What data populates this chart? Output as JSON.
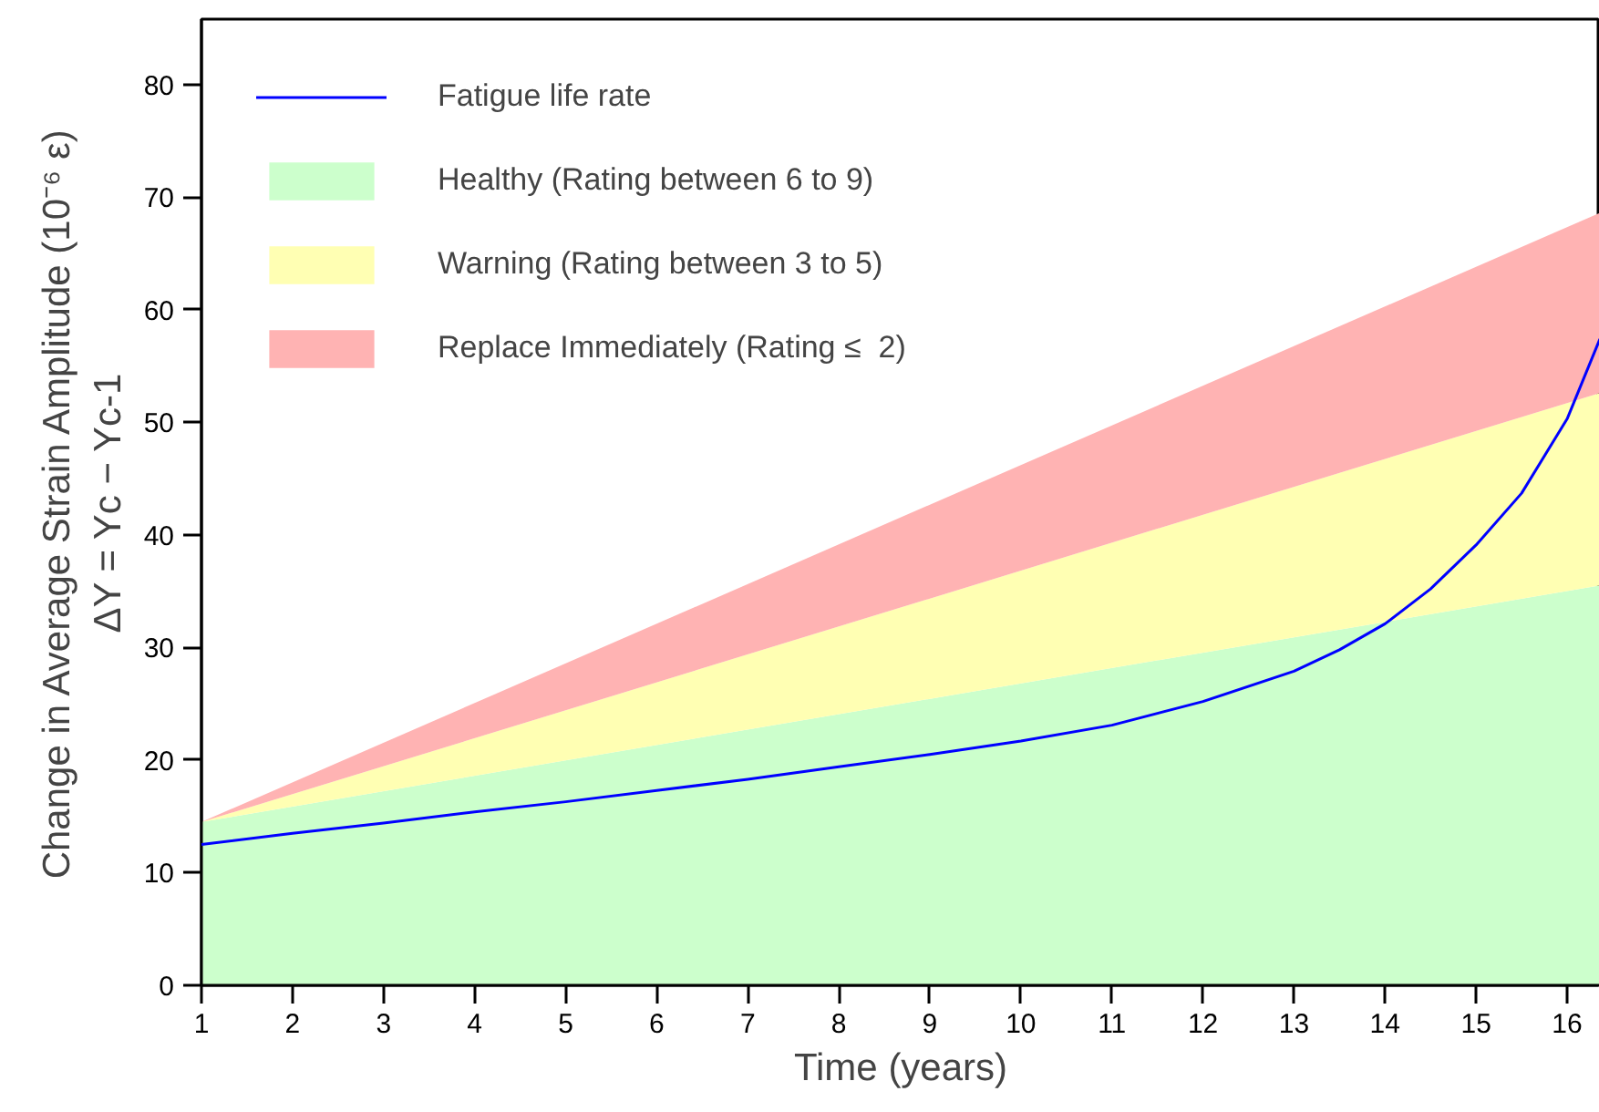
{
  "chart_data": {
    "type": "area",
    "stacked": true,
    "xlabel": "Time (years)",
    "ylabel": "Change in Average Strain Amplitude (10⁻⁶ ε)\nΔY = Yc − Yc-1",
    "xlim": [
      1,
      16.36
    ],
    "ylim": [
      0,
      85.8
    ],
    "xticks": [
      1,
      2,
      3,
      4,
      5,
      6,
      7,
      8,
      9,
      10,
      11,
      12,
      13,
      14,
      15,
      16
    ],
    "yticks": [
      0,
      10,
      20,
      30,
      40,
      50,
      60,
      70,
      80
    ],
    "x": [
      1,
      16.36
    ],
    "series": [
      {
        "name": "Fatigue life rate",
        "type": "line",
        "color": "#0000ff",
        "x": [
          1,
          2,
          3,
          4,
          5,
          6,
          7,
          8,
          9,
          10,
          11,
          12,
          13,
          13.5,
          14,
          14.5,
          15,
          15.5,
          16,
          16.36
        ],
        "values": [
          12.5,
          13.5,
          14.4,
          15.4,
          16.3,
          17.3,
          18.3,
          19.4,
          20.5,
          21.7,
          23.1,
          25.2,
          27.9,
          29.8,
          32.1,
          35.2,
          39.1,
          43.7,
          50.3,
          57.4
        ]
      },
      {
        "name": "Healthy (Rating between 6 to 9)",
        "color": "#ccffcc",
        "values": [
          14.5,
          35.5
        ]
      },
      {
        "name": "Warning (Rating between 3 to 5)",
        "color": "#ffffb3",
        "values": [
          0,
          17.1
        ]
      },
      {
        "name": "Replace Immediately (Rating ≤  2)",
        "color": "#ffb3b3",
        "values": [
          0,
          16
        ]
      }
    ],
    "legend": "top left",
    "grid": false
  }
}
